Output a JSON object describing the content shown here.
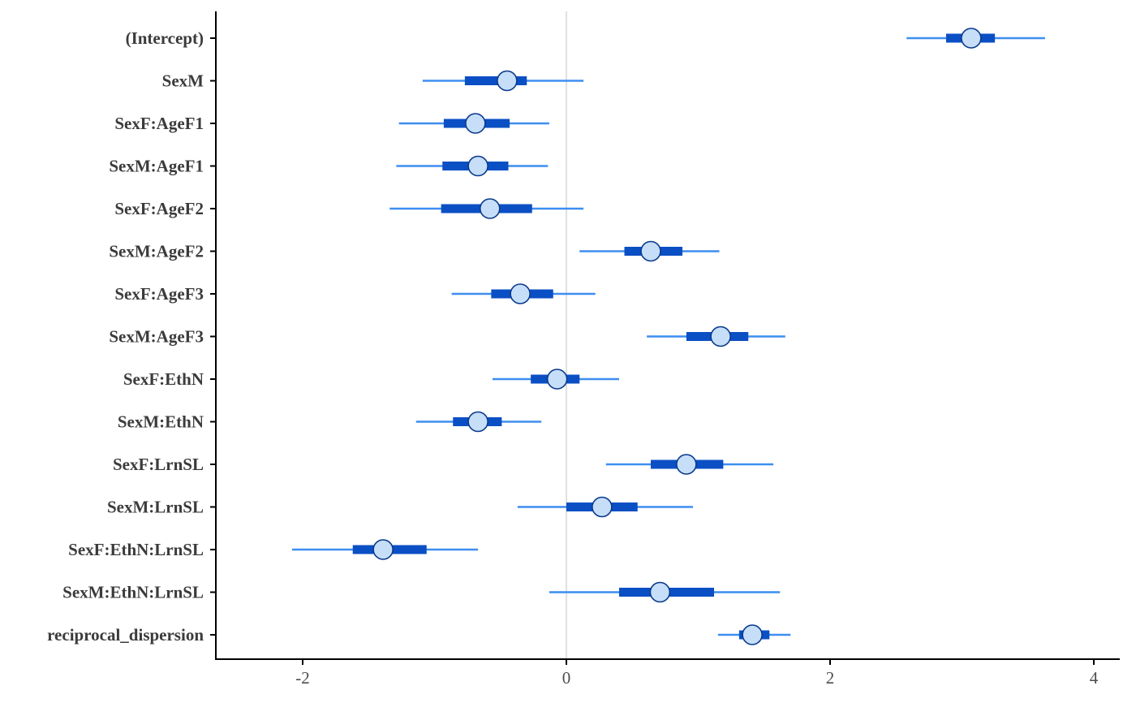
{
  "chart_data": {
    "type": "interval",
    "title": "",
    "xlabel": "",
    "ylabel": "",
    "xlim": [
      -2.6,
      4.1
    ],
    "xticks": [
      -2,
      0,
      2,
      4
    ],
    "xtick_labels": [
      "-2",
      "0",
      "2",
      "4"
    ],
    "reference_line_x": 0,
    "grid": false,
    "legend": "none",
    "colors": {
      "outer_interval": "#3d8ef0",
      "inner_interval": "#0b4fc4",
      "point_fill": "#c6def8",
      "point_stroke": "#0a3a8c",
      "reference_line": "#e0e0e0",
      "axis": "#000000"
    },
    "parameters": [
      {
        "name": "(Intercept)",
        "outer_lo": 2.58,
        "inner_lo": 2.88,
        "point": 3.07,
        "inner_hi": 3.25,
        "outer_hi": 3.63
      },
      {
        "name": "SexM",
        "outer_lo": -1.09,
        "inner_lo": -0.77,
        "point": -0.45,
        "inner_hi": -0.3,
        "outer_hi": 0.13
      },
      {
        "name": "SexF:AgeF1",
        "outer_lo": -1.27,
        "inner_lo": -0.93,
        "point": -0.69,
        "inner_hi": -0.43,
        "outer_hi": -0.13
      },
      {
        "name": "SexM:AgeF1",
        "outer_lo": -1.29,
        "inner_lo": -0.94,
        "point": -0.67,
        "inner_hi": -0.44,
        "outer_hi": -0.14
      },
      {
        "name": "SexF:AgeF2",
        "outer_lo": -1.34,
        "inner_lo": -0.95,
        "point": -0.58,
        "inner_hi": -0.26,
        "outer_hi": 0.13
      },
      {
        "name": "SexM:AgeF2",
        "outer_lo": 0.1,
        "inner_lo": 0.44,
        "point": 0.64,
        "inner_hi": 0.88,
        "outer_hi": 1.16
      },
      {
        "name": "SexF:AgeF3",
        "outer_lo": -0.87,
        "inner_lo": -0.57,
        "point": -0.35,
        "inner_hi": -0.1,
        "outer_hi": 0.22
      },
      {
        "name": "SexM:AgeF3",
        "outer_lo": 0.61,
        "inner_lo": 0.91,
        "point": 1.17,
        "inner_hi": 1.38,
        "outer_hi": 1.66
      },
      {
        "name": "SexF:EthN",
        "outer_lo": -0.56,
        "inner_lo": -0.27,
        "point": -0.07,
        "inner_hi": 0.1,
        "outer_hi": 0.4
      },
      {
        "name": "SexM:EthN",
        "outer_lo": -1.14,
        "inner_lo": -0.86,
        "point": -0.67,
        "inner_hi": -0.49,
        "outer_hi": -0.19
      },
      {
        "name": "SexF:LrnSL",
        "outer_lo": 0.3,
        "inner_lo": 0.64,
        "point": 0.91,
        "inner_hi": 1.19,
        "outer_hi": 1.57
      },
      {
        "name": "SexM:LrnSL",
        "outer_lo": -0.37,
        "inner_lo": 0.0,
        "point": 0.27,
        "inner_hi": 0.54,
        "outer_hi": 0.96
      },
      {
        "name": "SexF:EthN:LrnSL",
        "outer_lo": -2.08,
        "inner_lo": -1.62,
        "point": -1.39,
        "inner_hi": -1.06,
        "outer_hi": -0.67
      },
      {
        "name": "SexM:EthN:LrnSL",
        "outer_lo": -0.13,
        "inner_lo": 0.4,
        "point": 0.71,
        "inner_hi": 1.12,
        "outer_hi": 1.62
      },
      {
        "name": "reciprocal_dispersion",
        "outer_lo": 1.15,
        "inner_lo": 1.31,
        "point": 1.41,
        "inner_hi": 1.54,
        "outer_hi": 1.7
      }
    ]
  }
}
